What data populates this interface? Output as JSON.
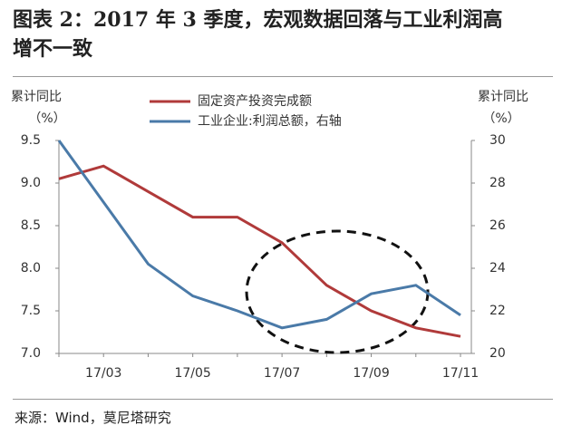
{
  "title": "图表 2：2017 年 3 季度，宏观数据回落与工业利润高增不一致",
  "source": "来源：Wind，莫尼塔研究",
  "chart_data": {
    "type": "line",
    "ylabel": [
      "累计同比",
      "（%）"
    ],
    "y2label": [
      "累计同比",
      "（%）"
    ],
    "categories": [
      null,
      "17/03",
      null,
      "17/05",
      null,
      "17/07",
      null,
      "17/09",
      null,
      "17/11"
    ],
    "series": [
      {
        "name": "固定资产投资完成额",
        "color": "#b03a3a",
        "values": [
          9.05,
          9.2,
          8.9,
          8.6,
          8.6,
          8.3,
          7.8,
          7.5,
          7.3,
          7.2
        ]
      },
      {
        "name": "工业企业:利润总额，右轴",
        "color": "#4a7aa8",
        "axis": "y2",
        "values": [
          30,
          27.1,
          24.2,
          22.7,
          22.0,
          21.2,
          21.6,
          22.8,
          23.2,
          21.8
        ]
      }
    ],
    "ylim": [
      7.0,
      9.5
    ],
    "yticks": [
      {
        "value": 7.0,
        "label": "7.0"
      },
      7.5,
      {
        "value": 8.0,
        "label": "8.0"
      },
      8.5,
      {
        "value": 9.0,
        "label": "9.0"
      },
      9.5
    ],
    "y2lim": [
      20,
      30
    ],
    "y2ticks": [
      20,
      22,
      24,
      26,
      28,
      30
    ]
  }
}
